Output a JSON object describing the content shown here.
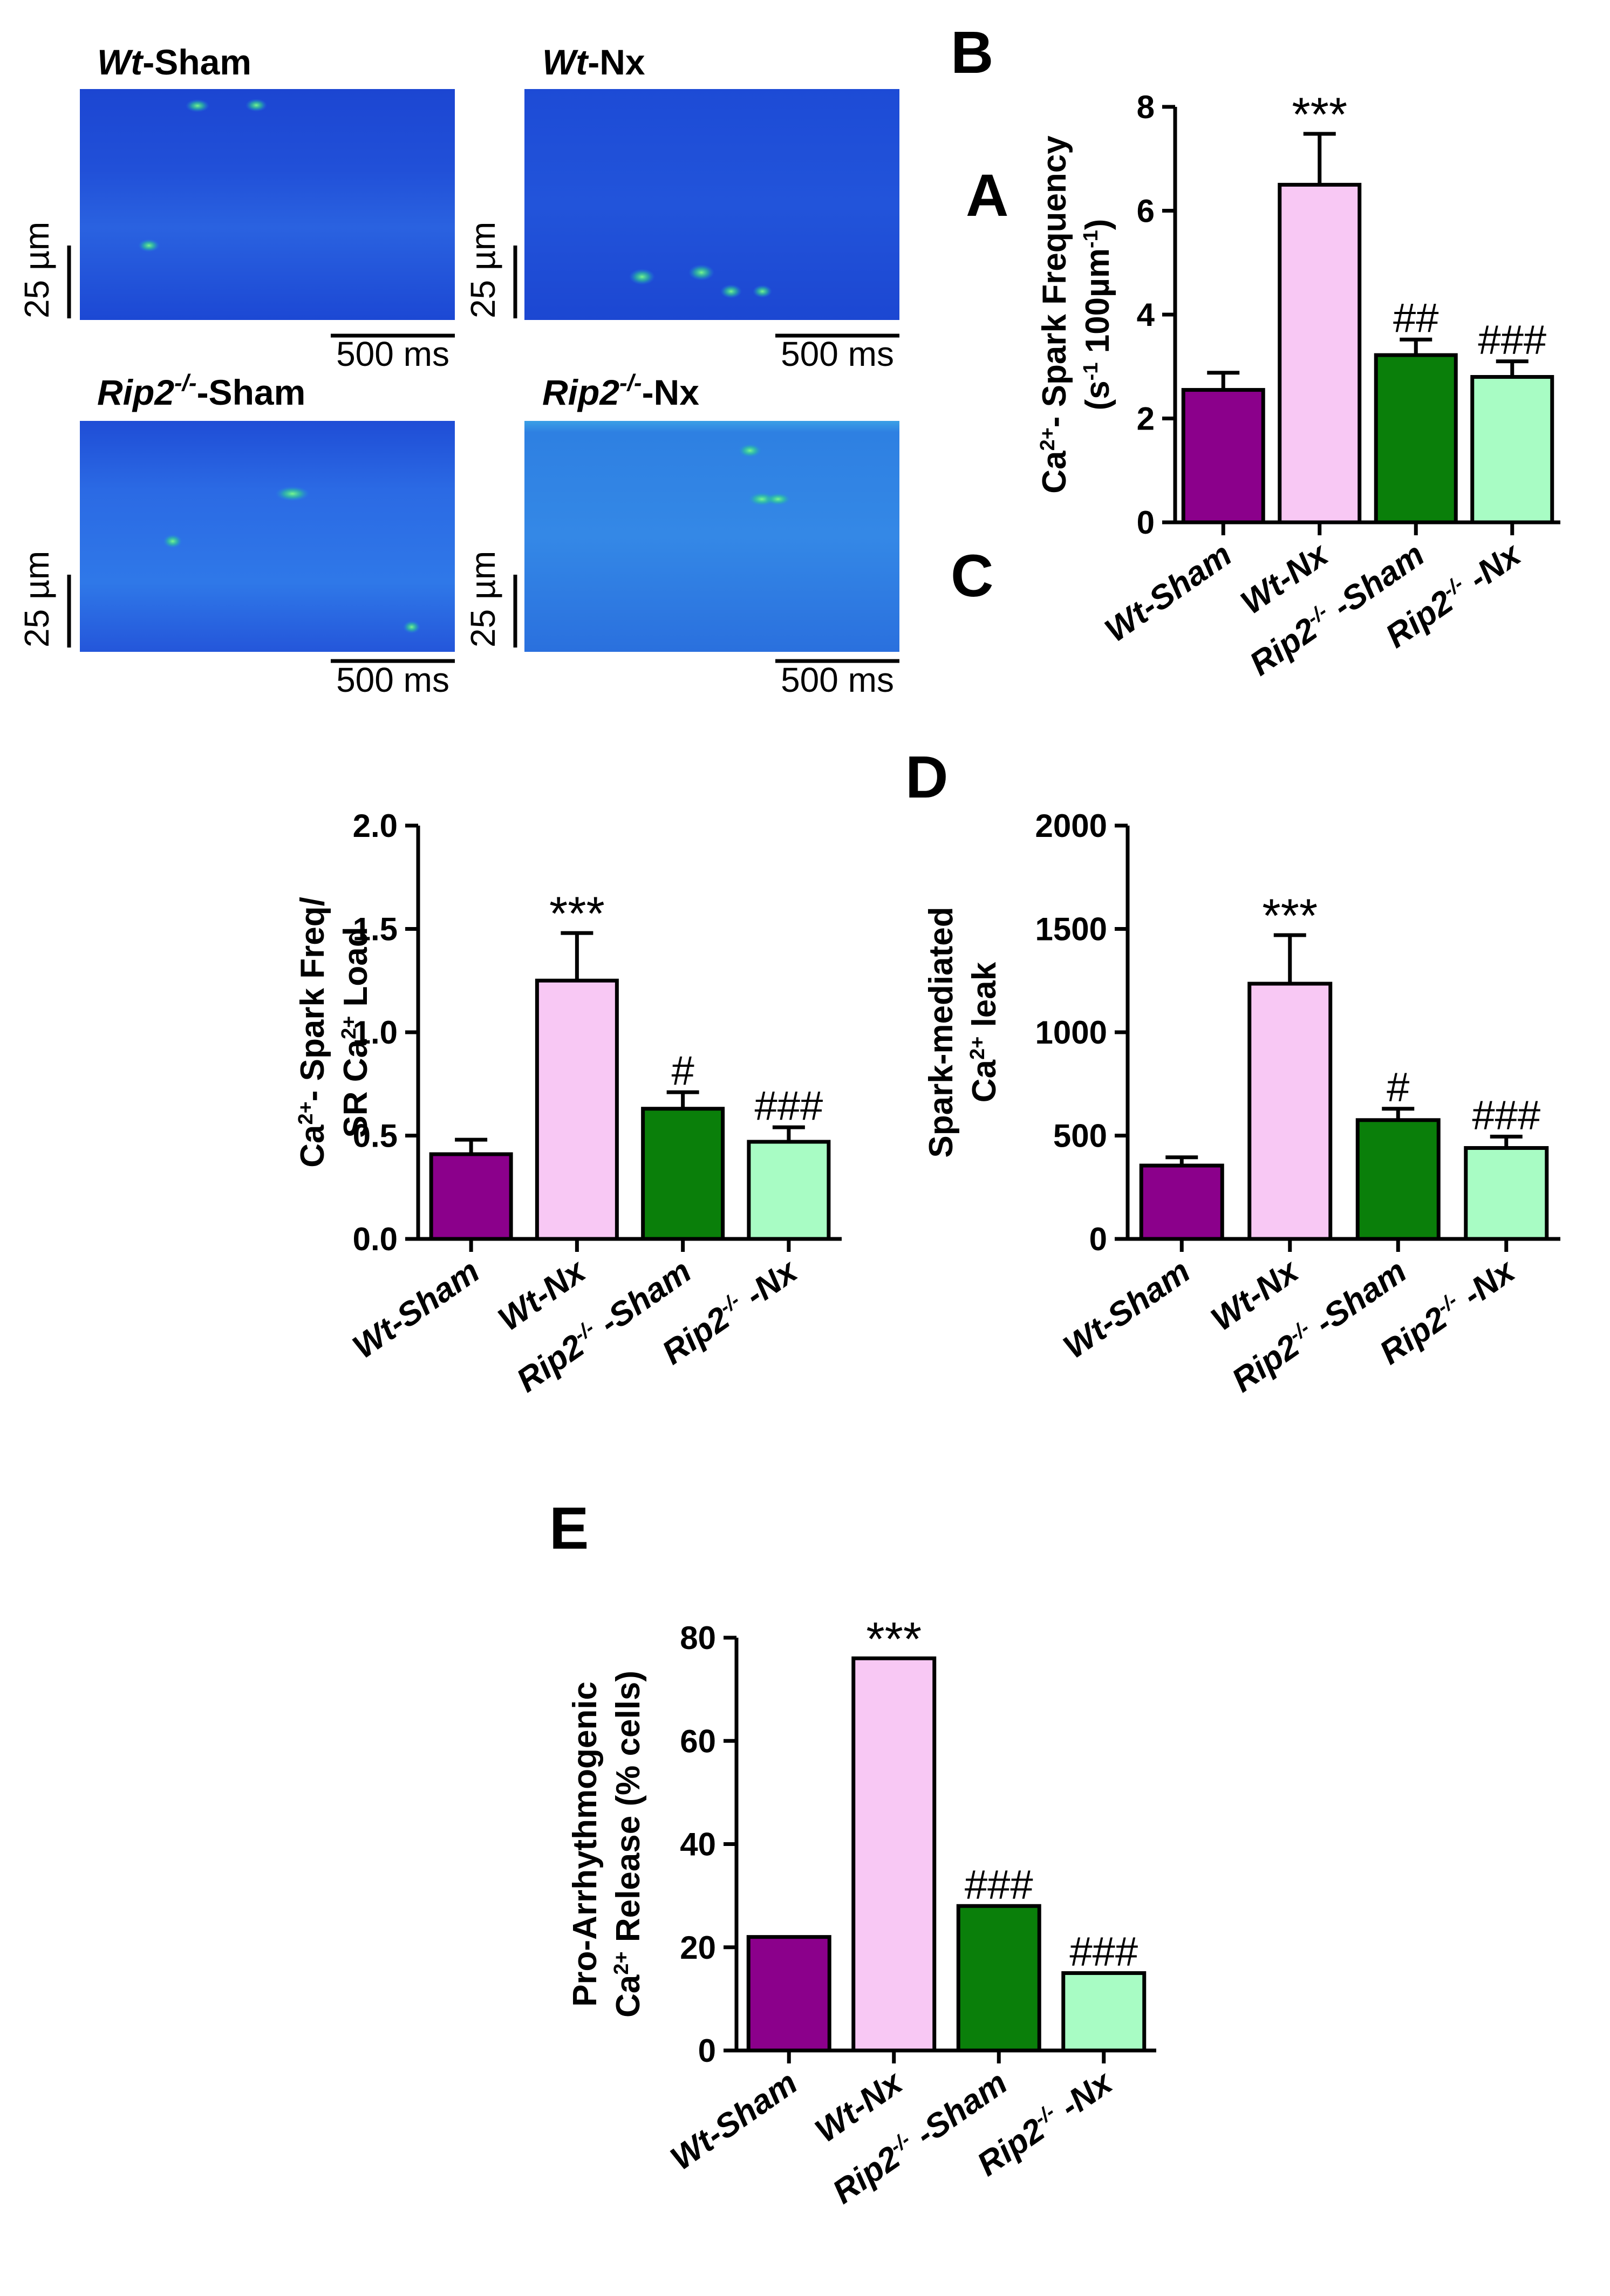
{
  "panel_letters": {
    "A": "A",
    "B": "B",
    "C": "C",
    "D": "D",
    "E": "E"
  },
  "confocal_images": [
    {
      "id": "wt-sham",
      "title_italic": "Wt",
      "title_rest": "-Sham",
      "scale_y": "25 µm",
      "scale_x": "500 ms"
    },
    {
      "id": "wt-nx",
      "title_italic": "Wt",
      "title_rest": "-Nx",
      "scale_y": "25 µm",
      "scale_x": "500 ms"
    },
    {
      "id": "rip2-sham",
      "title_italic": "Rip2",
      "title_sup": "-/-",
      "title_rest": "-Sham",
      "scale_y": "25 µm",
      "scale_x": "500 ms"
    },
    {
      "id": "rip2-nx",
      "title_italic": "Rip2",
      "title_sup": "-/-",
      "title_rest": "-Nx",
      "scale_y": "25 µm",
      "scale_x": "500 ms"
    }
  ],
  "group_labels": [
    {
      "main": "Wt-Sham"
    },
    {
      "main": "Wt-Nx"
    },
    {
      "main": "Rip2",
      "sup": "-/-",
      "tail": " -Sham"
    },
    {
      "main": "Rip2",
      "sup": "-/-",
      "tail": " -Nx"
    }
  ],
  "colors": [
    "#8B008B",
    "#F8C8F4",
    "#0A7F0A",
    "#A8FCC4"
  ],
  "chart_data": [
    {
      "id": "B",
      "type": "bar",
      "categories": [
        "Wt-Sham",
        "Wt-Nx",
        "Rip2-/- -Sham",
        "Rip2-/- -Nx"
      ],
      "values": [
        2.55,
        6.5,
        3.22,
        2.8
      ],
      "errors": [
        0.33,
        0.98,
        0.3,
        0.3
      ],
      "annotations": [
        "",
        "***",
        "##",
        "###"
      ],
      "ylim": [
        0,
        8
      ],
      "yticks": [
        0,
        2,
        4,
        6,
        8
      ],
      "ytick_labels": [
        "0",
        "2",
        "4",
        "6",
        "8"
      ],
      "ylabel": [
        [
          {
            "t": "Ca"
          },
          {
            "t": "2+",
            "s": "sup"
          },
          {
            "t": "- Spark Frequency"
          }
        ],
        [
          {
            "t": "(s"
          },
          {
            "t": "-1",
            "s": "sup"
          },
          {
            "t": " 100µm"
          },
          {
            "t": "-1",
            "s": "sup"
          },
          {
            "t": ")"
          }
        ]
      ]
    },
    {
      "id": "C",
      "type": "bar",
      "categories": [
        "Wt-Sham",
        "Wt-Nx",
        "Rip2-/- -Sham",
        "Rip2-/- -Nx"
      ],
      "values": [
        0.41,
        1.25,
        0.63,
        0.47
      ],
      "errors": [
        0.07,
        0.23,
        0.08,
        0.07
      ],
      "annotations": [
        "",
        "***",
        "#",
        "###"
      ],
      "ylim": [
        0,
        2.0
      ],
      "yticks": [
        0,
        0.5,
        1.0,
        1.5,
        2.0
      ],
      "ytick_labels": [
        "0.0",
        "0.5",
        "1.0",
        "1.5",
        "2.0"
      ],
      "ylabel": [
        [
          {
            "t": "Ca"
          },
          {
            "t": "2+",
            "s": "sup"
          },
          {
            "t": "- Spark Freq/"
          }
        ],
        [
          {
            "t": "SR Ca"
          },
          {
            "t": "2+",
            "s": "sup"
          },
          {
            "t": " Load"
          }
        ]
      ]
    },
    {
      "id": "D",
      "type": "bar",
      "categories": [
        "Wt-Sham",
        "Wt-Nx",
        "Rip2-/- -Sham",
        "Rip2-/- -Nx"
      ],
      "values": [
        355,
        1235,
        575,
        440
      ],
      "errors": [
        40,
        235,
        55,
        55
      ],
      "annotations": [
        "",
        "***",
        "#",
        "###"
      ],
      "ylim": [
        0,
        2000
      ],
      "yticks": [
        0,
        500,
        1000,
        1500,
        2000
      ],
      "ytick_labels": [
        "0",
        "500",
        "1000",
        "1500",
        "2000"
      ],
      "ylabel": [
        [
          {
            "t": "Spark-mediated"
          }
        ],
        [
          {
            "t": "Ca"
          },
          {
            "t": "2+",
            "s": "sup"
          },
          {
            "t": " leak"
          }
        ]
      ]
    },
    {
      "id": "E",
      "type": "bar",
      "categories": [
        "Wt-Sham",
        "Wt-Nx",
        "Rip2-/- -Sham",
        "Rip2-/- -Nx"
      ],
      "values": [
        22,
        76,
        28,
        15
      ],
      "errors": [
        0,
        0,
        0,
        0
      ],
      "annotations": [
        "",
        "***",
        "###",
        "###"
      ],
      "ylim": [
        0,
        80
      ],
      "yticks": [
        0,
        20,
        40,
        60,
        80
      ],
      "ytick_labels": [
        "0",
        "20",
        "40",
        "60",
        "80"
      ],
      "ylabel": [
        [
          {
            "t": "Pro-Arrhythmogenic"
          }
        ],
        [
          {
            "t": "Ca"
          },
          {
            "t": "2+",
            "s": "sup"
          },
          {
            "t": " Release (% cells)"
          }
        ]
      ]
    }
  ]
}
